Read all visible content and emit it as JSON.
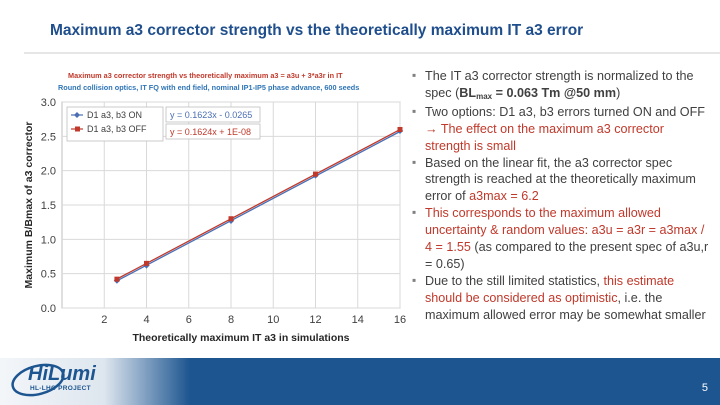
{
  "slide": {
    "title": "Maximum a3 corrector strength vs the theoretically maximum IT a3 error",
    "page_number": "5"
  },
  "logo": {
    "name": "HiLumi",
    "tagline": "HL-LHC PROJECT"
  },
  "bullets": [
    {
      "parts": [
        {
          "text": "The IT a3 corrector strength is normalized to the spec ("
        },
        {
          "text": "BL",
          "bold": true
        },
        {
          "text": "max",
          "bold": true,
          "sub": true
        },
        {
          "text": " = 0.063 Tm @50 mm",
          "bold": true
        },
        {
          "text": ")"
        }
      ]
    },
    {
      "parts": [
        {
          "text": "Two options: D1 a3, b3 errors turned ON and OFF "
        },
        {
          "text": "→ The effect on the maximum a3 corrector strength is small",
          "hl": true
        }
      ]
    },
    {
      "parts": [
        {
          "text": "Based on the linear fit, the a3 corrector spec strength is reached at the theoretically maximum error of "
        },
        {
          "text": "a3max = 6.2",
          "hl": true
        }
      ]
    },
    {
      "parts": [
        {
          "text": "This corresponds to the maximum allowed uncertainty & random values: ",
          "hl": true
        },
        {
          "text": "a3u = a3r = a3max / 4 = 1.55",
          "hl": true
        },
        {
          "text": " (as compared to the present spec of a3u,r = 0.65)"
        }
      ]
    },
    {
      "parts": [
        {
          "text": "Due to the still limited statistics, "
        },
        {
          "text": "this estimate should be considered as optimistic",
          "hl": true
        },
        {
          "text": ", i.e. the maximum allowed error may be somewhat smaller"
        }
      ]
    }
  ],
  "chart_data": {
    "type": "line",
    "title": "Maximum a3 corrector strength vs theoretically maximum a3 = a3u + 3*a3r in IT",
    "subtitle": "Round collision optics, IT FQ with end field, nominal IP1-IP5 phase advance, 600 seeds",
    "xlabel": "Theoretically maximum IT a3 in simulations",
    "ylabel": "Maximum B/Bmax of a3 corrector",
    "xlim": [
      0,
      16
    ],
    "ylim": [
      0.0,
      3.0
    ],
    "xticks": [
      "2",
      "4",
      "6",
      "8",
      "10",
      "12",
      "14",
      "16"
    ],
    "yticks": [
      "0.0",
      "0.5",
      "1.0",
      "1.5",
      "2.0",
      "2.5",
      "3.0"
    ],
    "grid": true,
    "legend_position": "top-left",
    "series": [
      {
        "name": "D1 a3, b3 ON",
        "color": "#4a6fb5",
        "marker": "diamond",
        "x": [
          2.6,
          4,
          8,
          12,
          16
        ],
        "y": [
          0.4,
          0.62,
          1.27,
          1.93,
          2.58
        ],
        "fit_label": "y = 0.1623x - 0.0265",
        "fit": {
          "slope": 0.1623,
          "intercept": -0.0265
        }
      },
      {
        "name": "D1 a3, b3 OFF",
        "color": "#c0392b",
        "marker": "square",
        "x": [
          2.6,
          4,
          8,
          12,
          16
        ],
        "y": [
          0.42,
          0.65,
          1.3,
          1.95,
          2.6
        ],
        "fit_label": "y = 0.1624x + 1E-08",
        "fit": {
          "slope": 0.1624,
          "intercept": 1e-08
        }
      }
    ]
  }
}
